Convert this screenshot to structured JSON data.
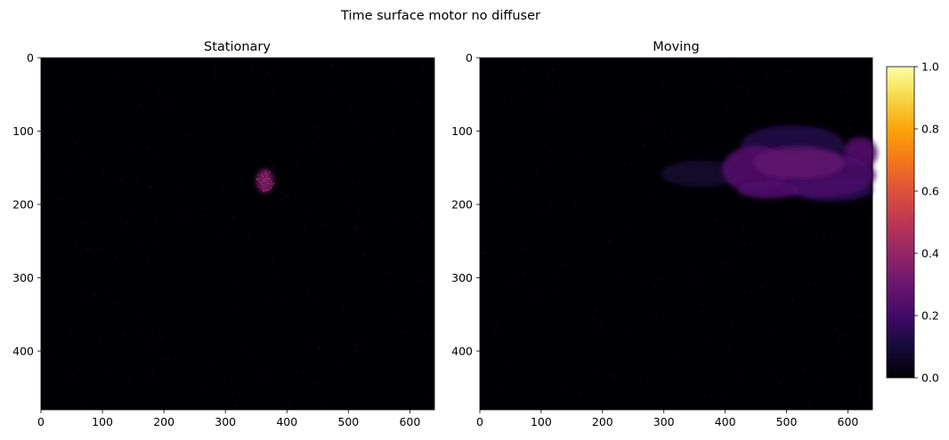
{
  "figure": {
    "title": "Time surface motor no diffuser"
  },
  "chart_data": [
    {
      "type": "heatmap",
      "title": "Stationary",
      "colormap": "inferno",
      "xlim": [
        0,
        640
      ],
      "ylim": [
        480,
        0
      ],
      "xticks": [
        0,
        100,
        200,
        300,
        400,
        500,
        600
      ],
      "yticks": [
        0,
        100,
        200,
        300,
        400
      ],
      "background_value": 0.0,
      "regions": [
        {
          "shape": "ellipse",
          "cx": 364,
          "cy": 168,
          "rx": 14,
          "ry": 16,
          "value": 0.35
        }
      ]
    },
    {
      "type": "heatmap",
      "title": "Moving",
      "colormap": "inferno",
      "xlim": [
        0,
        640
      ],
      "ylim": [
        480,
        0
      ],
      "xticks": [
        0,
        100,
        200,
        300,
        400,
        500,
        600
      ],
      "yticks": [
        0,
        100,
        200,
        300,
        400
      ],
      "background_value": 0.0,
      "regions": [
        {
          "shape": "ellipse",
          "cx": 360,
          "cy": 158,
          "rx": 65,
          "ry": 18,
          "value": 0.08
        },
        {
          "shape": "ellipse",
          "cx": 510,
          "cy": 120,
          "rx": 85,
          "ry": 28,
          "value": 0.13
        },
        {
          "shape": "ellipse",
          "cx": 575,
          "cy": 180,
          "rx": 65,
          "ry": 16,
          "value": 0.15
        },
        {
          "shape": "ellipse",
          "cx": 620,
          "cy": 130,
          "rx": 28,
          "ry": 22,
          "value": 0.24
        },
        {
          "shape": "ellipse",
          "cx": 555,
          "cy": 160,
          "rx": 90,
          "ry": 30,
          "value": 0.22
        },
        {
          "shape": "ellipse",
          "cx": 450,
          "cy": 152,
          "rx": 55,
          "ry": 32,
          "value": 0.24
        },
        {
          "shape": "ellipse",
          "cx": 520,
          "cy": 143,
          "rx": 75,
          "ry": 22,
          "value": 0.27
        },
        {
          "shape": "ellipse",
          "cx": 470,
          "cy": 180,
          "rx": 50,
          "ry": 12,
          "value": 0.23
        }
      ]
    }
  ],
  "colorbar": {
    "colormap": "inferno",
    "range": [
      0.0,
      1.0
    ],
    "ticks": [
      "0.0",
      "0.2",
      "0.4",
      "0.6",
      "0.8",
      "1.0"
    ]
  }
}
